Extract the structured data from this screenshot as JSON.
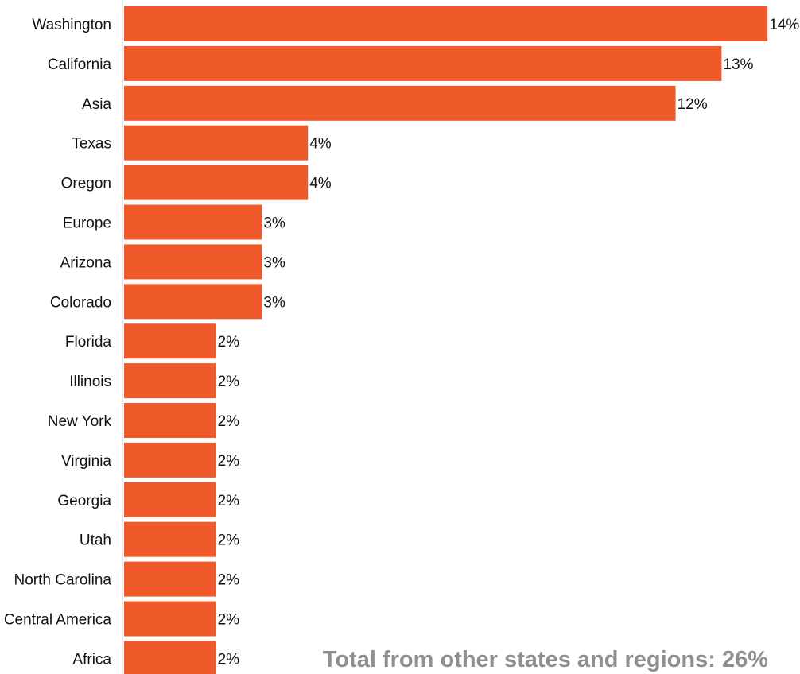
{
  "chart_data": {
    "type": "bar",
    "orientation": "horizontal",
    "title": "",
    "xlabel": "",
    "ylabel": "",
    "categories": [
      "Washington",
      "California",
      "Asia",
      "Texas",
      "Oregon",
      "Europe",
      "Arizona",
      "Colorado",
      "Florida",
      "Illinois",
      "New York",
      "Virginia",
      "Georgia",
      "Utah",
      "North Carolina",
      "Central America",
      "Africa"
    ],
    "values": [
      14,
      13,
      12,
      4,
      4,
      3,
      3,
      3,
      2,
      2,
      2,
      2,
      2,
      2,
      2,
      2,
      2
    ],
    "value_labels": [
      "14%",
      "13%",
      "12%",
      "4%",
      "4%",
      "3%",
      "3%",
      "3%",
      "2%",
      "2%",
      "2%",
      "2%",
      "2%",
      "2%",
      "2%",
      "2%",
      "2%"
    ],
    "unit": "%",
    "xlim": [
      0,
      14
    ],
    "grid": false,
    "bar_color": "#f05a2a",
    "annotation": "Total from other states and regions: 26%"
  }
}
